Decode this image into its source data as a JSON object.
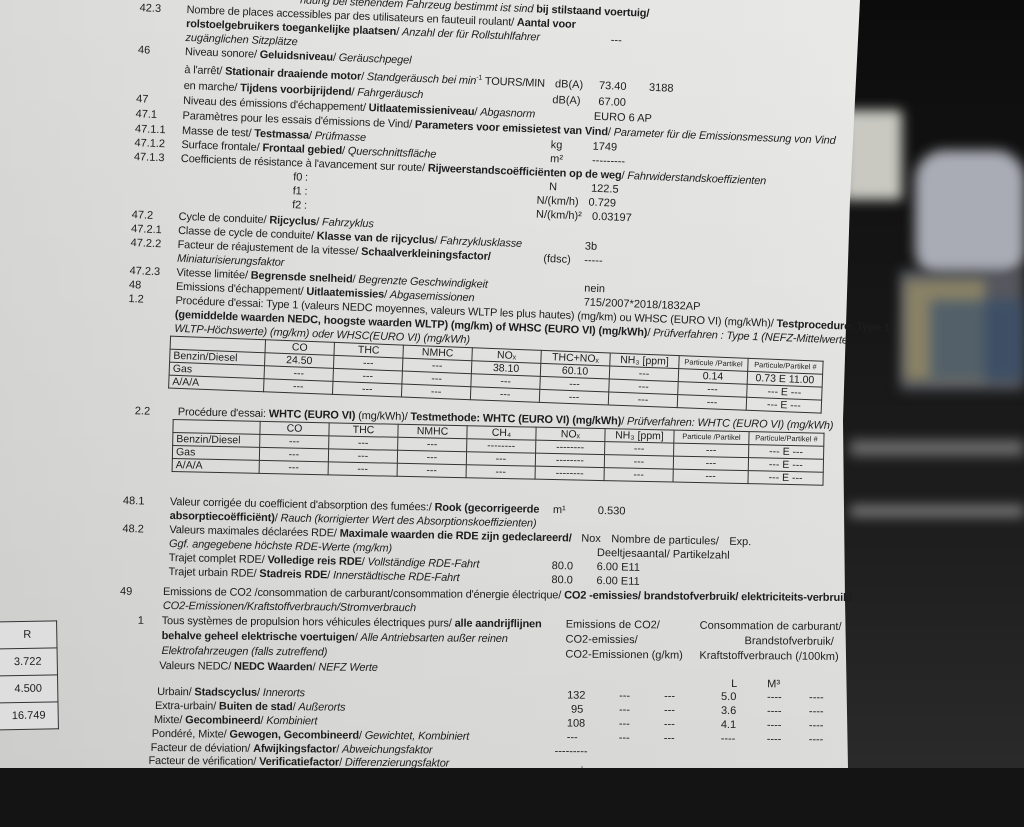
{
  "colors": {
    "paper": "#e6e6e4",
    "ink": "#1d1d1f",
    "background": "#141414"
  },
  "top_rows": [
    {
      "num": "",
      "segs": [
        [
          "i",
          "ndung bei stehendem Fahrzeug bestimmt ist sind"
        ],
        [
          "n",
          " "
        ],
        [
          "b",
          "bij stilstaand voertuig/"
        ]
      ],
      "vals": []
    },
    {
      "num": "42.3",
      "segs": [
        [
          "n",
          "Nombre de places accessibles par des utilisateurs en fauteuil roulant/ "
        ],
        [
          "b",
          "Aantal voor"
        ]
      ],
      "vals": []
    },
    {
      "num": "",
      "segs": [
        [
          "b",
          "rolstoelgebruikers toegankelijke plaatsen"
        ],
        [
          "n",
          "/ "
        ],
        [
          "i",
          "Anzahl der für Rollstuhlfahrer"
        ]
      ],
      "vals": [
        "---"
      ]
    },
    {
      "num": "",
      "segs": [
        [
          "i",
          "zugänglichen Sitzplätze"
        ]
      ],
      "vals": []
    },
    {
      "num": "46",
      "segs": [
        [
          "n",
          "Niveau sonore/ "
        ],
        [
          "b",
          "Geluidsniveau"
        ],
        [
          "n",
          "/  "
        ],
        [
          "i",
          "Geräuschpegel"
        ]
      ],
      "vals": []
    },
    {
      "num": "",
      "segs": [
        [
          "n",
          "à l'arrêt/ "
        ],
        [
          "b",
          "Stationair draaiende motor"
        ],
        [
          "n",
          "/ "
        ],
        [
          "i",
          "Standgeräusch bei min"
        ],
        [
          "sup",
          "-1"
        ],
        [
          "n",
          " TOURS/MIN"
        ]
      ],
      "vals": [
        "dB(A)",
        "73.40",
        "3188"
      ]
    },
    {
      "num": "",
      "segs": [
        [
          "n",
          "en marche/ "
        ],
        [
          "b",
          "Tijdens voorbijrijdend"
        ],
        [
          "n",
          "/ "
        ],
        [
          "i",
          "Fahrgeräusch"
        ]
      ],
      "vals": [
        "dB(A)",
        "67.00"
      ]
    },
    {
      "num": "47",
      "segs": [
        [
          "n",
          "Niveau des émissions d'échappement/ "
        ],
        [
          "b",
          "Uitlaatemissieniveau"
        ],
        [
          "n",
          "/ "
        ],
        [
          "i",
          "Abgasnorm"
        ]
      ],
      "vals": [
        "EURO 6 AP"
      ]
    },
    {
      "num": "47.1",
      "segs": [
        [
          "n",
          "Paramètres pour les essais d'émissions de Vind/ "
        ],
        [
          "b",
          "Parameters voor emissietest van Vind"
        ],
        [
          "n",
          "/ "
        ],
        [
          "i",
          "Parameter für die Emissionsmessung von Vind"
        ]
      ],
      "vals": []
    },
    {
      "num": "47.1.1",
      "segs": [
        [
          "n",
          "Masse de test/ "
        ],
        [
          "b",
          "Testmassa"
        ],
        [
          "n",
          "/ "
        ],
        [
          "i",
          "Prüfmasse"
        ]
      ],
      "vals": [
        "kg",
        "1749"
      ]
    },
    {
      "num": "47.1.2",
      "segs": [
        [
          "n",
          "Surface frontale/ "
        ],
        [
          "b",
          "Frontaal gebied"
        ],
        [
          "n",
          "/ "
        ],
        [
          "i",
          "Querschnittsfläche"
        ]
      ],
      "vals": [
        "m²",
        "---------"
      ]
    },
    {
      "num": "47.1.3",
      "segs": [
        [
          "n",
          "Coefficients de résistance à l'avancement sur route/ "
        ],
        [
          "b",
          "Rijweerstandscoëfficiënten op de weg"
        ],
        [
          "n",
          "/ "
        ],
        [
          "i",
          "Fahrwiderstandskoeffizienten"
        ]
      ],
      "vals": []
    },
    {
      "num": "",
      "segs": [
        [
          "n",
          "f0 :"
        ]
      ],
      "vals": [
        "N",
        "122.5"
      ]
    },
    {
      "num": "",
      "segs": [
        [
          "n",
          "f1 :"
        ]
      ],
      "vals": [
        "N/(km/h)",
        "0.729"
      ]
    },
    {
      "num": "",
      "segs": [
        [
          "n",
          "f2 :"
        ]
      ],
      "vals": [
        "N/(km/h)²",
        "0.03197"
      ]
    },
    {
      "num": "47.2",
      "segs": [
        [
          "n",
          "Cycle de conduite/ "
        ],
        [
          "b",
          "Rijcyclus"
        ],
        [
          "n",
          "/ "
        ],
        [
          "i",
          "Fahrzyklus"
        ]
      ],
      "vals": []
    },
    {
      "num": "47.2.1",
      "segs": [
        [
          "n",
          "Classe de cycle de conduite/ "
        ],
        [
          "b",
          "Klasse van de rijcyclus"
        ],
        [
          "n",
          "/ "
        ],
        [
          "i",
          "Fahrzyklusklasse"
        ]
      ],
      "vals": [
        "3b"
      ]
    },
    {
      "num": "47.2.2",
      "segs": [
        [
          "n",
          "Facteur de réajustement de la vitesse/ "
        ],
        [
          "b",
          "Schaalverkleiningsfactor/"
        ]
      ],
      "vals": [
        "(fdsc)",
        "-----"
      ]
    },
    {
      "num": "",
      "segs": [
        [
          "i",
          "Miniaturisierungsfaktor"
        ]
      ],
      "vals": []
    },
    {
      "num": "47.2.3",
      "segs": [
        [
          "n",
          "Vitesse limitée/ "
        ],
        [
          "b",
          "Begrensde snelheid"
        ],
        [
          "n",
          "/ "
        ],
        [
          "i",
          "Begrenzte Geschwindigkeit"
        ]
      ],
      "vals": [
        "nein"
      ]
    },
    {
      "num": "48",
      "segs": [
        [
          "n",
          "Emissions d'échappement/ "
        ],
        [
          "b",
          "Uitlaatemissies"
        ],
        [
          "n",
          "/ "
        ],
        [
          "i",
          "Abgasemissionen"
        ]
      ],
      "vals": [
        "715/2007*2018/1832AP"
      ]
    },
    {
      "num": "1.2",
      "segs": [
        [
          "n",
          "Procédure d'essai: Type 1 (valeurs NEDC moyennes, valeurs WLTP les plus hautes) (mg/km) ou WHSC (EURO VI) (mg/kWh)/ "
        ],
        [
          "b",
          "Testprocedure: Type 1"
        ]
      ],
      "vals": []
    },
    {
      "num": "",
      "segs": [
        [
          "b",
          "(gemiddelde waarden NEDC, hoogste waarden WLTP) (mg/km) of WHSC (EURO VI) (mg/kWh)"
        ],
        [
          "n",
          "/ "
        ],
        [
          "i",
          "Prüfverfahren : Type 1 (NEFZ-Mittelwerte ,"
        ]
      ],
      "vals": []
    },
    {
      "num": "",
      "segs": [
        [
          "i",
          "WLTP-Höchswerte) (mg/km) oder WHSC(EURO VI) (mg/kWh)"
        ]
      ],
      "vals": []
    }
  ],
  "table1": {
    "headers": [
      "",
      "CO",
      "THC",
      "NMHC",
      "NOₓ",
      "THC+NOₓ",
      "NH₃ [ppm]",
      "Particule /Partikel",
      "Particule/Partikel #"
    ],
    "rows": [
      [
        "Benzin/Diesel",
        "24.50",
        "---",
        "---",
        "38.10",
        "60.10",
        "---",
        "0.14",
        "0.73 E 11.00"
      ],
      [
        "Gas",
        "---",
        "---",
        "---",
        "---",
        "---",
        "---",
        "---",
        "--- E ---"
      ],
      [
        "A/A/A",
        "---",
        "---",
        "---",
        "---",
        "---",
        "---",
        "---",
        "--- E ---"
      ]
    ]
  },
  "mid_rows": [
    {
      "num": "2.2",
      "segs": [
        [
          "n",
          "Procédure d'essai: "
        ],
        [
          "b",
          "WHTC (EURO VI)"
        ],
        [
          "n",
          " (mg/kWh)/ "
        ],
        [
          "b",
          "Testmethode: WHTC (EURO VI) (mg/kWh)"
        ],
        [
          "n",
          "/ "
        ],
        [
          "i",
          "Prüfverfahren: WHTC (EURO VI) (mg/kWh)"
        ]
      ],
      "vals": []
    },
    {
      "num": "48.1",
      "segs": [
        [
          "n",
          "Valeur corrigée du coefficient d'absorption des fumées:/ "
        ],
        [
          "b",
          "Rook (gecorrigeerde"
        ]
      ],
      "vals": [
        "m¹",
        "0.530"
      ]
    },
    {
      "num": "",
      "segs": [
        [
          "b",
          "absorptiecoëfficiënt)"
        ],
        [
          "n",
          "/ "
        ],
        [
          "i",
          "Rauch (korrigierter Wert des Absorptionskoeffizienten)"
        ]
      ],
      "vals": []
    },
    {
      "num": "48.2",
      "segs": [
        [
          "n",
          "Valeurs maximales déclarées RDE/ "
        ],
        [
          "b",
          "Maximale waarden die RDE zijn gedeclareerd/"
        ]
      ],
      "vals": [
        "Nox",
        "Nombre de particules/",
        "Exp."
      ]
    },
    {
      "num": "",
      "segs": [
        [
          "i",
          "Ggf. angegebene höchste RDE-Werte  (mg/km)"
        ]
      ],
      "vals": [
        "Deeltjesaantal/ Partikelzahl"
      ]
    },
    {
      "num": "",
      "segs": [
        [
          "n",
          "Trajet complet RDE/ "
        ],
        [
          "b",
          "Volledige reis RDE"
        ],
        [
          "n",
          "/ "
        ],
        [
          "i",
          "Vollständige RDE-Fahrt"
        ]
      ],
      "vals": [
        "80.0",
        "6.00 E11"
      ]
    },
    {
      "num": "",
      "segs": [
        [
          "n",
          "Trajet urbain RDE/ "
        ],
        [
          "b",
          "Stadreis RDE"
        ],
        [
          "n",
          "/ "
        ],
        [
          "i",
          "Innerstädtische RDE-Fahrt"
        ]
      ],
      "vals": [
        "80.0",
        "6.00 E11"
      ]
    }
  ],
  "table2": {
    "headers": [
      "",
      "CO",
      "THC",
      "NMHC",
      "CH₄",
      "NOₓ",
      "NH₃ [ppm]",
      "Particule /Partikel",
      "Particule/Partikel #"
    ],
    "rows": [
      [
        "Benzin/Diesel",
        "---",
        "---",
        "---",
        "--------",
        "--------",
        "---",
        "---",
        "--- E ---"
      ],
      [
        "Gas",
        "---",
        "---",
        "---",
        "---",
        "--------",
        "---",
        "---",
        "--- E ---"
      ],
      [
        "A/A/A",
        "---",
        "---",
        "---",
        "---",
        "--------",
        "---",
        "---",
        "--- E ---"
      ]
    ]
  },
  "bottom_rows": [
    {
      "num": "49",
      "segs": [
        [
          "n",
          "Emissions de CO2 /consommation de carburant/consommation d'énergie électrique/ "
        ],
        [
          "b",
          "CO2 -emissies/ brandstofverbruik/ elektriciteits-verbruik/"
        ]
      ],
      "vals": []
    },
    {
      "num": "",
      "segs": [
        [
          "i",
          "CO2-Emissionen/Kraftstoffverbrauch/Stromverbrauch"
        ]
      ],
      "vals": []
    },
    {
      "num": "1",
      "segs": [
        [
          "n",
          "Tous systèmes de propulsion hors véhicules électriques purs/ "
        ],
        [
          "b",
          "alle aandrijflijnen"
        ]
      ],
      "vals": [
        "Emissions de CO2/",
        "Consommation de carburant/"
      ]
    },
    {
      "num": "",
      "segs": [
        [
          "b",
          "behalve geheel elektrische voertuigen"
        ],
        [
          "n",
          "/ "
        ],
        [
          "i",
          "Alle Antriebsarten außer reinen"
        ]
      ],
      "vals": [
        "CO2-emissies/",
        "Brandstofverbruik/"
      ]
    },
    {
      "num": "",
      "segs": [
        [
          "i",
          "Elektrofahrzeugen (falls zutreffend)"
        ]
      ],
      "vals": [
        "CO2-Emissionen (g/km)",
        "Kraftstoffverbrauch (/100km)"
      ]
    },
    {
      "num": "",
      "segs": [
        [
          "n",
          "Valeurs NEDC/ "
        ],
        [
          "b",
          "NEDC Waarden"
        ],
        [
          "n",
          "/ "
        ],
        [
          "i",
          "NEFZ Werte"
        ]
      ],
      "vals": []
    },
    {
      "num": "",
      "segs": [],
      "vals": [
        "L",
        "M³"
      ]
    },
    {
      "num": "",
      "segs": [
        [
          "n",
          "Urbain/ "
        ],
        [
          "b",
          "Stadscyclus"
        ],
        [
          "n",
          "/ "
        ],
        [
          "i",
          "Innerorts"
        ]
      ],
      "vals": [
        "132",
        "---",
        "---",
        "5.0",
        "----",
        "----"
      ]
    },
    {
      "num": "",
      "segs": [
        [
          "n",
          "Extra-urbain/ "
        ],
        [
          "b",
          "Buiten de stad"
        ],
        [
          "n",
          "/ "
        ],
        [
          "i",
          "Außerorts"
        ]
      ],
      "vals": [
        "95",
        "---",
        "---",
        "3.6",
        "----",
        "----"
      ]
    },
    {
      "num": "",
      "segs": [
        [
          "n",
          "Mixte/ "
        ],
        [
          "b",
          "Gecombineerd"
        ],
        [
          "n",
          "/ "
        ],
        [
          "i",
          "Kombiniert"
        ]
      ],
      "vals": [
        "108",
        "---",
        "---",
        "4.1",
        "----",
        "----"
      ]
    },
    {
      "num": "",
      "segs": [
        [
          "n",
          "Pondéré, Mixte/ "
        ],
        [
          "b",
          "Gewogen, Gecombineerd"
        ],
        [
          "n",
          "/ "
        ],
        [
          "i",
          "Gewichtet, Kombiniert"
        ]
      ],
      "vals": [
        "---",
        "---",
        "---",
        "----",
        "----",
        "----"
      ]
    },
    {
      "num": "",
      "segs": [
        [
          "n",
          "Facteur de déviation/ "
        ],
        [
          "b",
          "Afwijkingsfactor"
        ],
        [
          "n",
          "/ "
        ],
        [
          "i",
          "Abweichungsfaktor"
        ]
      ],
      "vals": [
        "---------"
      ]
    },
    {
      "num": "",
      "segs": [
        [
          "n",
          "Facteur de vérification/ "
        ],
        [
          "b",
          "Verificatiefactor"
        ],
        [
          "n",
          "/ "
        ],
        [
          "i",
          "Differenzierungsfaktor"
        ]
      ],
      "vals": [
        "."
      ]
    }
  ],
  "side_table": {
    "header": "R",
    "values": [
      "3.722",
      "4.500",
      "16.749"
    ]
  }
}
